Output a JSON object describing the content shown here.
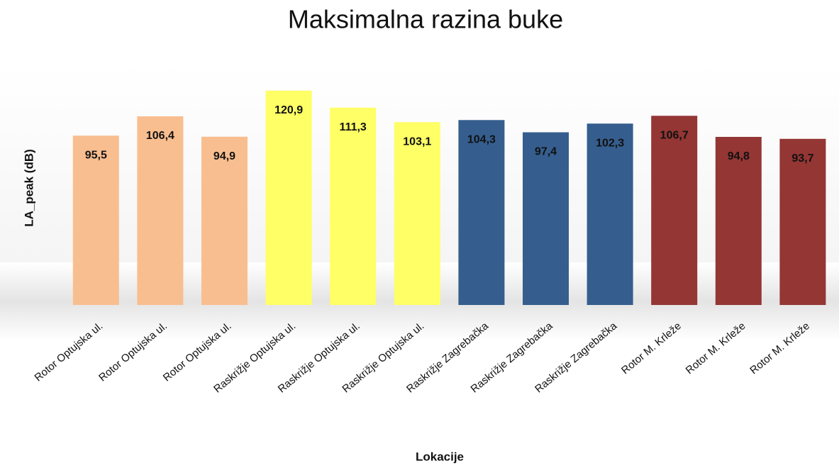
{
  "chart_data": {
    "type": "bar",
    "title": "Maksimalna razina buke",
    "y_label": "LA_peak (dB)",
    "x_label": "Lokacije",
    "categories": [
      "Rotor Optujska ul.",
      "Rotor Optujska ul.",
      "Rotor Optujska ul.",
      "Raskrižje Optujska ul.",
      "Raskrižje Optujska ul.",
      "Raskrižje Optujska ul.",
      "Raskrižje Zagrebačka",
      "Raskrižje Zagrebačka",
      "Raskrižje Zagrebačka",
      "Rotor M. Krleže",
      "Rotor M. Krleže",
      "Rotor M. Krleže"
    ],
    "values": [
      95.5,
      106.4,
      94.9,
      120.9,
      111.3,
      103.1,
      104.3,
      97.4,
      102.3,
      106.7,
      94.8,
      93.7
    ],
    "value_labels": [
      "95,5",
      "106,4",
      "94,9",
      "120,9",
      "111,3",
      "103,1",
      "104,3",
      "97,4",
      "102,3",
      "106,7",
      "94,8",
      "93,7"
    ],
    "colors": [
      "#f9be8f",
      "#f9be8f",
      "#f9be8f",
      "#ffff66",
      "#ffff66",
      "#ffff66",
      "#355e8e",
      "#355e8e",
      "#355e8e",
      "#943634",
      "#943634",
      "#943634"
    ]
  }
}
